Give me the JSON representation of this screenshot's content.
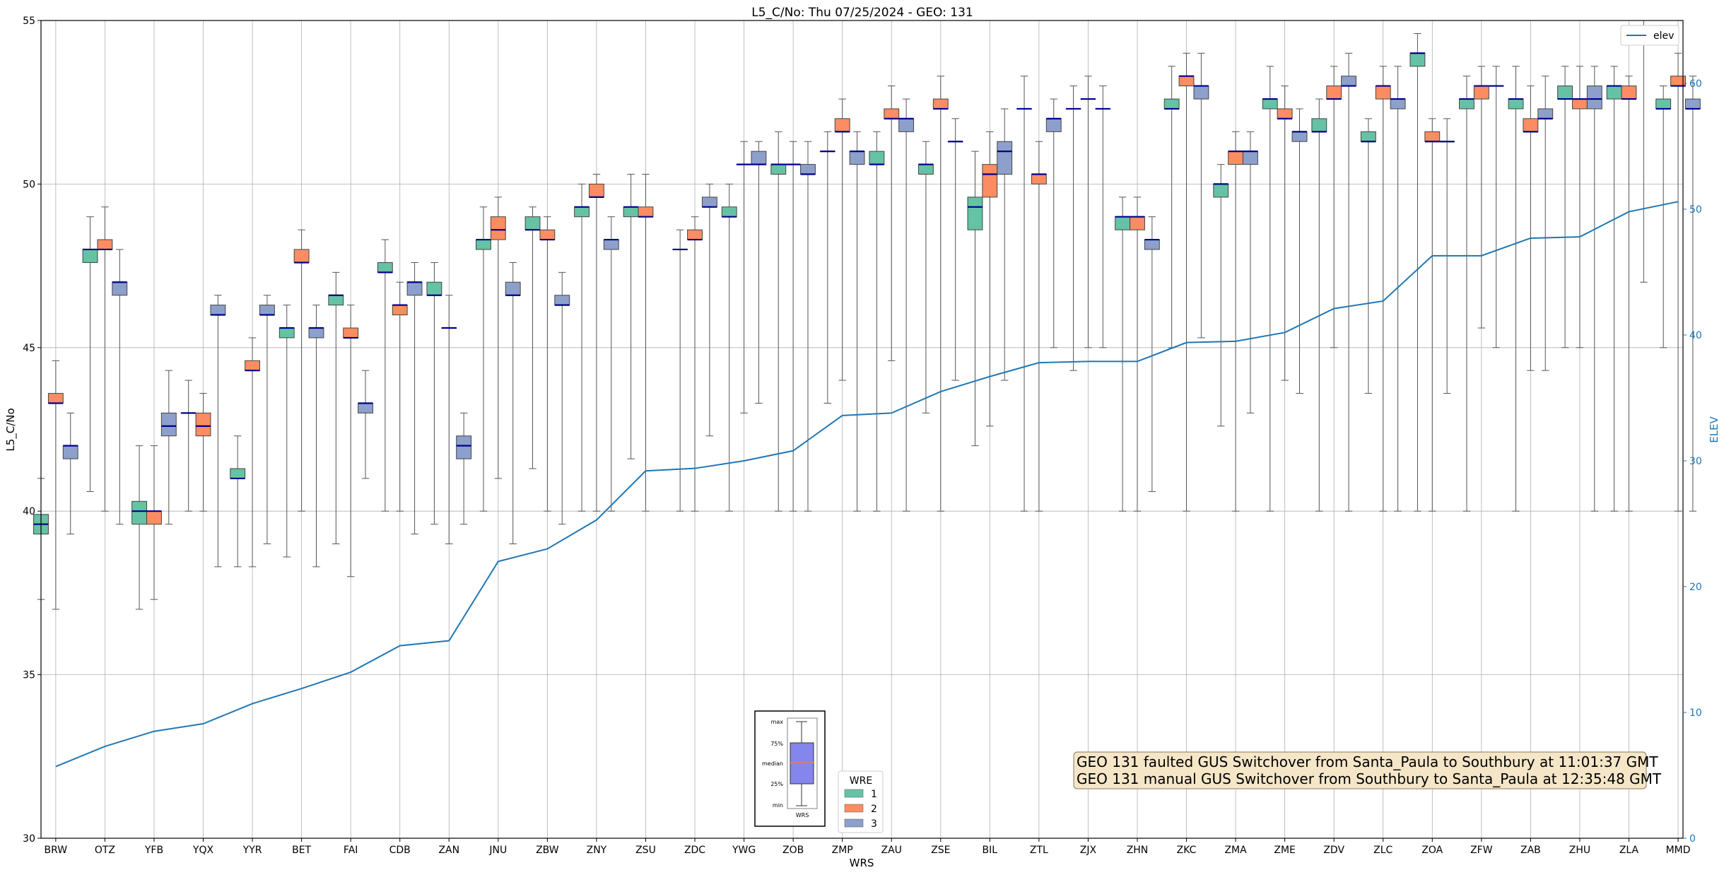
{
  "chart_data": {
    "type": "box",
    "title": "L5_C/No: Thu 07/25/2024 - GEO: 131",
    "xlabel": "WRS",
    "ylabel": "L5_C/No",
    "y2label": "ELEV",
    "ylim": [
      30,
      55
    ],
    "y2lim": [
      0,
      65
    ],
    "yticks": [
      "30",
      "35",
      "40",
      "45",
      "50",
      "55"
    ],
    "y2ticks": [
      "0",
      "10",
      "20",
      "30",
      "40",
      "50",
      "60"
    ],
    "grid": true,
    "categories": [
      "BRW",
      "OTZ",
      "YFB",
      "YQX",
      "YYR",
      "BET",
      "FAI",
      "CDB",
      "ZAN",
      "JNU",
      "ZBW",
      "ZNY",
      "ZSU",
      "ZDC",
      "YWG",
      "ZOB",
      "ZMP",
      "ZAU",
      "ZSE",
      "BIL",
      "ZTL",
      "ZJX",
      "ZHN",
      "ZKC",
      "ZMA",
      "ZME",
      "ZDV",
      "ZLC",
      "ZOA",
      "ZFW",
      "ZAB",
      "ZHU",
      "ZLA",
      "MMD"
    ],
    "wre_colors": {
      "1": "#66c2a5",
      "2": "#fc8d62",
      "3": "#8da0cb"
    },
    "median_color": "#00008b",
    "boxes": [
      {
        "site": "BRW",
        "wre": "1",
        "min": 37.3,
        "q1": 39.3,
        "median": 39.6,
        "q3": 39.9,
        "max": 41.0
      },
      {
        "site": "BRW",
        "wre": "2",
        "min": 37.0,
        "q1": 43.3,
        "median": 43.3,
        "q3": 43.6,
        "max": 44.6
      },
      {
        "site": "BRW",
        "wre": "3",
        "min": 39.3,
        "q1": 41.6,
        "median": 42.0,
        "q3": 42.0,
        "max": 43.0
      },
      {
        "site": "OTZ",
        "wre": "1",
        "min": 40.6,
        "q1": 47.6,
        "median": 48.0,
        "q3": 48.0,
        "max": 49.0
      },
      {
        "site": "OTZ",
        "wre": "2",
        "min": 40.0,
        "q1": 48.0,
        "median": 48.0,
        "q3": 48.3,
        "max": 49.3
      },
      {
        "site": "OTZ",
        "wre": "3",
        "min": 39.6,
        "q1": 46.6,
        "median": 47.0,
        "q3": 47.0,
        "max": 48.0
      },
      {
        "site": "YFB",
        "wre": "1",
        "min": 37.0,
        "q1": 39.6,
        "median": 40.0,
        "q3": 40.3,
        "max": 42.0
      },
      {
        "site": "YFB",
        "wre": "2",
        "min": 37.3,
        "q1": 39.6,
        "median": 40.0,
        "q3": 40.0,
        "max": 42.0
      },
      {
        "site": "YFB",
        "wre": "3",
        "min": 39.6,
        "q1": 42.3,
        "median": 42.6,
        "q3": 43.0,
        "max": 44.3
      },
      {
        "site": "YQX",
        "wre": "1",
        "min": 40.0,
        "q1": 43.0,
        "median": 43.0,
        "q3": 43.0,
        "max": 44.0
      },
      {
        "site": "YQX",
        "wre": "2",
        "min": 40.0,
        "q1": 42.3,
        "median": 42.6,
        "q3": 43.0,
        "max": 43.6
      },
      {
        "site": "YQX",
        "wre": "3",
        "min": 38.3,
        "q1": 46.0,
        "median": 46.0,
        "q3": 46.3,
        "max": 46.6
      },
      {
        "site": "YYR",
        "wre": "1",
        "min": 38.3,
        "q1": 41.0,
        "median": 41.0,
        "q3": 41.3,
        "max": 42.3
      },
      {
        "site": "YYR",
        "wre": "2",
        "min": 38.3,
        "q1": 44.3,
        "median": 44.3,
        "q3": 44.6,
        "max": 45.3
      },
      {
        "site": "YYR",
        "wre": "3",
        "min": 39.0,
        "q1": 46.0,
        "median": 46.0,
        "q3": 46.3,
        "max": 46.6
      },
      {
        "site": "BET",
        "wre": "1",
        "min": 38.6,
        "q1": 45.3,
        "median": 45.6,
        "q3": 45.6,
        "max": 46.3
      },
      {
        "site": "BET",
        "wre": "2",
        "min": 40.0,
        "q1": 47.6,
        "median": 47.6,
        "q3": 48.0,
        "max": 48.6
      },
      {
        "site": "BET",
        "wre": "3",
        "min": 38.3,
        "q1": 45.3,
        "median": 45.6,
        "q3": 45.6,
        "max": 46.3
      },
      {
        "site": "FAI",
        "wre": "1",
        "min": 39.0,
        "q1": 46.3,
        "median": 46.6,
        "q3": 46.6,
        "max": 47.3
      },
      {
        "site": "FAI",
        "wre": "2",
        "min": 38.0,
        "q1": 45.3,
        "median": 45.3,
        "q3": 45.6,
        "max": 46.3
      },
      {
        "site": "FAI",
        "wre": "3",
        "min": 41.0,
        "q1": 43.0,
        "median": 43.3,
        "q3": 43.3,
        "max": 44.3
      },
      {
        "site": "CDB",
        "wre": "1",
        "min": 40.0,
        "q1": 47.3,
        "median": 47.3,
        "q3": 47.6,
        "max": 48.3
      },
      {
        "site": "CDB",
        "wre": "2",
        "min": 40.0,
        "q1": 46.0,
        "median": 46.3,
        "q3": 46.3,
        "max": 47.0
      },
      {
        "site": "CDB",
        "wre": "3",
        "min": 39.3,
        "q1": 46.6,
        "median": 47.0,
        "q3": 47.0,
        "max": 47.6
      },
      {
        "site": "ZAN",
        "wre": "1",
        "min": 39.6,
        "q1": 46.6,
        "median": 46.6,
        "q3": 47.0,
        "max": 47.6
      },
      {
        "site": "ZAN",
        "wre": "2",
        "min": 39.0,
        "q1": 45.6,
        "median": 45.6,
        "q3": 45.6,
        "max": 46.6
      },
      {
        "site": "ZAN",
        "wre": "3",
        "min": 39.6,
        "q1": 41.6,
        "median": 42.0,
        "q3": 42.3,
        "max": 43.0
      },
      {
        "site": "JNU",
        "wre": "1",
        "min": 40.0,
        "q1": 48.0,
        "median": 48.3,
        "q3": 48.3,
        "max": 49.3
      },
      {
        "site": "JNU",
        "wre": "2",
        "min": 41.0,
        "q1": 48.3,
        "median": 48.6,
        "q3": 49.0,
        "max": 49.6
      },
      {
        "site": "JNU",
        "wre": "3",
        "min": 39.0,
        "q1": 46.6,
        "median": 46.6,
        "q3": 47.0,
        "max": 47.6
      },
      {
        "site": "ZBW",
        "wre": "1",
        "min": 41.3,
        "q1": 48.6,
        "median": 48.6,
        "q3": 49.0,
        "max": 49.3
      },
      {
        "site": "ZBW",
        "wre": "2",
        "min": 40.0,
        "q1": 48.3,
        "median": 48.3,
        "q3": 48.6,
        "max": 49.0
      },
      {
        "site": "ZBW",
        "wre": "3",
        "min": 39.6,
        "q1": 46.3,
        "median": 46.3,
        "q3": 46.6,
        "max": 47.3
      },
      {
        "site": "ZNY",
        "wre": "1",
        "min": 40.0,
        "q1": 49.0,
        "median": 49.3,
        "q3": 49.3,
        "max": 50.0
      },
      {
        "site": "ZNY",
        "wre": "2",
        "min": 40.0,
        "q1": 49.6,
        "median": 49.6,
        "q3": 50.0,
        "max": 50.3
      },
      {
        "site": "ZNY",
        "wre": "3",
        "min": 40.0,
        "q1": 48.0,
        "median": 48.3,
        "q3": 48.3,
        "max": 49.0
      },
      {
        "site": "ZSU",
        "wre": "1",
        "min": 41.6,
        "q1": 49.0,
        "median": 49.3,
        "q3": 49.3,
        "max": 50.3
      },
      {
        "site": "ZSU",
        "wre": "2",
        "min": 40.0,
        "q1": 49.0,
        "median": 49.0,
        "q3": 49.3,
        "max": 50.3
      },
      {
        "site": "ZDC",
        "wre": "1",
        "min": 40.0,
        "q1": 48.0,
        "median": 48.0,
        "q3": 48.0,
        "max": 48.6
      },
      {
        "site": "ZDC",
        "wre": "2",
        "min": 40.0,
        "q1": 48.3,
        "median": 48.3,
        "q3": 48.6,
        "max": 49.0
      },
      {
        "site": "ZDC",
        "wre": "3",
        "min": 42.3,
        "q1": 49.3,
        "median": 49.3,
        "q3": 49.6,
        "max": 50.0
      },
      {
        "site": "YWG",
        "wre": "1",
        "min": 40.0,
        "q1": 49.0,
        "median": 49.0,
        "q3": 49.3,
        "max": 50.0
      },
      {
        "site": "YWG",
        "wre": "2",
        "min": 43.0,
        "q1": 50.6,
        "median": 50.6,
        "q3": 50.6,
        "max": 51.3
      },
      {
        "site": "YWG",
        "wre": "3",
        "min": 43.3,
        "q1": 50.6,
        "median": 50.6,
        "q3": 51.0,
        "max": 51.3
      },
      {
        "site": "ZOB",
        "wre": "1",
        "min": 40.0,
        "q1": 50.3,
        "median": 50.6,
        "q3": 50.6,
        "max": 51.6
      },
      {
        "site": "ZOB",
        "wre": "2",
        "min": 40.0,
        "q1": 50.6,
        "median": 50.6,
        "q3": 50.6,
        "max": 51.3
      },
      {
        "site": "ZOB",
        "wre": "3",
        "min": 40.0,
        "q1": 50.3,
        "median": 50.3,
        "q3": 50.6,
        "max": 51.3
      },
      {
        "site": "ZMP",
        "wre": "1",
        "min": 43.3,
        "q1": 51.0,
        "median": 51.0,
        "q3": 51.0,
        "max": 51.6
      },
      {
        "site": "ZMP",
        "wre": "2",
        "min": 44.0,
        "q1": 51.6,
        "median": 51.6,
        "q3": 52.0,
        "max": 52.6
      },
      {
        "site": "ZMP",
        "wre": "3",
        "min": 40.0,
        "q1": 50.6,
        "median": 51.0,
        "q3": 51.0,
        "max": 51.6
      },
      {
        "site": "ZAU",
        "wre": "1",
        "min": 40.0,
        "q1": 50.6,
        "median": 50.6,
        "q3": 51.0,
        "max": 51.6
      },
      {
        "site": "ZAU",
        "wre": "2",
        "min": 44.6,
        "q1": 52.0,
        "median": 52.0,
        "q3": 52.3,
        "max": 53.0
      },
      {
        "site": "ZAU",
        "wre": "3",
        "min": 40.0,
        "q1": 51.6,
        "median": 52.0,
        "q3": 52.0,
        "max": 52.6
      },
      {
        "site": "ZSE",
        "wre": "1",
        "min": 43.0,
        "q1": 50.3,
        "median": 50.6,
        "q3": 50.6,
        "max": 51.3
      },
      {
        "site": "ZSE",
        "wre": "2",
        "min": 40.0,
        "q1": 52.3,
        "median": 52.3,
        "q3": 52.6,
        "max": 53.3
      },
      {
        "site": "ZSE",
        "wre": "3",
        "min": 44.0,
        "q1": 51.3,
        "median": 51.3,
        "q3": 51.3,
        "max": 52.0
      },
      {
        "site": "BIL",
        "wre": "1",
        "min": 42.0,
        "q1": 48.6,
        "median": 49.3,
        "q3": 49.6,
        "max": 51.0
      },
      {
        "site": "BIL",
        "wre": "2",
        "min": 42.6,
        "q1": 49.6,
        "median": 50.3,
        "q3": 50.6,
        "max": 51.6
      },
      {
        "site": "BIL",
        "wre": "3",
        "min": 44.0,
        "q1": 50.3,
        "median": 51.0,
        "q3": 51.3,
        "max": 52.3
      },
      {
        "site": "ZTL",
        "wre": "1",
        "min": 40.0,
        "q1": 52.3,
        "median": 52.3,
        "q3": 52.3,
        "max": 53.3
      },
      {
        "site": "ZTL",
        "wre": "2",
        "min": 40.0,
        "q1": 50.0,
        "median": 50.3,
        "q3": 50.3,
        "max": 51.3
      },
      {
        "site": "ZTL",
        "wre": "3",
        "min": 45.0,
        "q1": 51.6,
        "median": 52.0,
        "q3": 52.0,
        "max": 52.6
      },
      {
        "site": "ZJX",
        "wre": "1",
        "min": 44.3,
        "q1": 52.3,
        "median": 52.3,
        "q3": 52.3,
        "max": 53.0
      },
      {
        "site": "ZJX",
        "wre": "2",
        "min": 45.0,
        "q1": 52.6,
        "median": 52.6,
        "q3": 52.6,
        "max": 53.3
      },
      {
        "site": "ZJX",
        "wre": "3",
        "min": 45.0,
        "q1": 52.3,
        "median": 52.3,
        "q3": 52.3,
        "max": 53.0
      },
      {
        "site": "ZHN",
        "wre": "1",
        "min": 40.0,
        "q1": 48.6,
        "median": 49.0,
        "q3": 49.0,
        "max": 49.6
      },
      {
        "site": "ZHN",
        "wre": "2",
        "min": 40.0,
        "q1": 48.6,
        "median": 49.0,
        "q3": 49.0,
        "max": 49.6
      },
      {
        "site": "ZHN",
        "wre": "3",
        "min": 40.6,
        "q1": 48.0,
        "median": 48.3,
        "q3": 48.3,
        "max": 49.0
      },
      {
        "site": "ZKC",
        "wre": "1",
        "min": 45.0,
        "q1": 52.3,
        "median": 52.3,
        "q3": 52.6,
        "max": 53.6
      },
      {
        "site": "ZKC",
        "wre": "2",
        "min": 40.0,
        "q1": 53.0,
        "median": 53.3,
        "q3": 53.3,
        "max": 54.0
      },
      {
        "site": "ZKC",
        "wre": "3",
        "min": 45.3,
        "q1": 52.6,
        "median": 53.0,
        "q3": 53.0,
        "max": 54.0
      },
      {
        "site": "ZMA",
        "wre": "1",
        "min": 42.6,
        "q1": 49.6,
        "median": 50.0,
        "q3": 50.0,
        "max": 50.6
      },
      {
        "site": "ZMA",
        "wre": "2",
        "min": 40.0,
        "q1": 50.6,
        "median": 51.0,
        "q3": 51.0,
        "max": 51.6
      },
      {
        "site": "ZMA",
        "wre": "3",
        "min": 43.0,
        "q1": 50.6,
        "median": 51.0,
        "q3": 51.0,
        "max": 51.6
      },
      {
        "site": "ZME",
        "wre": "1",
        "min": 40.0,
        "q1": 52.3,
        "median": 52.6,
        "q3": 52.6,
        "max": 53.6
      },
      {
        "site": "ZME",
        "wre": "2",
        "min": 44.0,
        "q1": 52.0,
        "median": 52.0,
        "q3": 52.3,
        "max": 53.0
      },
      {
        "site": "ZME",
        "wre": "3",
        "min": 43.6,
        "q1": 51.3,
        "median": 51.6,
        "q3": 51.6,
        "max": 52.3
      },
      {
        "site": "ZDV",
        "wre": "1",
        "min": 40.0,
        "q1": 51.6,
        "median": 51.6,
        "q3": 52.0,
        "max": 52.6
      },
      {
        "site": "ZDV",
        "wre": "2",
        "min": 45.0,
        "q1": 52.6,
        "median": 52.6,
        "q3": 53.0,
        "max": 53.6
      },
      {
        "site": "ZDV",
        "wre": "3",
        "min": 40.0,
        "q1": 53.0,
        "median": 53.0,
        "q3": 53.3,
        "max": 54.0
      },
      {
        "site": "ZLC",
        "wre": "1",
        "min": 43.6,
        "q1": 51.3,
        "median": 51.3,
        "q3": 51.6,
        "max": 52.0
      },
      {
        "site": "ZLC",
        "wre": "2",
        "min": 40.0,
        "q1": 52.6,
        "median": 53.0,
        "q3": 53.0,
        "max": 53.6
      },
      {
        "site": "ZLC",
        "wre": "3",
        "min": 40.0,
        "q1": 52.3,
        "median": 52.6,
        "q3": 52.6,
        "max": 53.6
      },
      {
        "site": "ZOA",
        "wre": "1",
        "min": 40.0,
        "q1": 53.6,
        "median": 54.0,
        "q3": 54.0,
        "max": 54.6
      },
      {
        "site": "ZOA",
        "wre": "2",
        "min": 40.0,
        "q1": 51.3,
        "median": 51.3,
        "q3": 51.6,
        "max": 52.0
      },
      {
        "site": "ZOA",
        "wre": "3",
        "min": 43.6,
        "q1": 51.3,
        "median": 51.3,
        "q3": 51.3,
        "max": 52.0
      },
      {
        "site": "ZFW",
        "wre": "1",
        "min": 40.0,
        "q1": 52.3,
        "median": 52.6,
        "q3": 52.6,
        "max": 53.3
      },
      {
        "site": "ZFW",
        "wre": "2",
        "min": 45.6,
        "q1": 52.6,
        "median": 53.0,
        "q3": 53.0,
        "max": 53.6
      },
      {
        "site": "ZFW",
        "wre": "3",
        "min": 45.0,
        "q1": 53.0,
        "median": 53.0,
        "q3": 53.0,
        "max": 53.6
      },
      {
        "site": "ZAB",
        "wre": "1",
        "min": 40.0,
        "q1": 52.3,
        "median": 52.6,
        "q3": 52.6,
        "max": 53.6
      },
      {
        "site": "ZAB",
        "wre": "2",
        "min": 44.3,
        "q1": 51.6,
        "median": 51.6,
        "q3": 52.0,
        "max": 53.0
      },
      {
        "site": "ZAB",
        "wre": "3",
        "min": 44.3,
        "q1": 52.0,
        "median": 52.0,
        "q3": 52.3,
        "max": 53.3
      },
      {
        "site": "ZHU",
        "wre": "1",
        "min": 45.0,
        "q1": 52.6,
        "median": 52.6,
        "q3": 53.0,
        "max": 53.6
      },
      {
        "site": "ZHU",
        "wre": "2",
        "min": 45.0,
        "q1": 52.3,
        "median": 52.6,
        "q3": 52.6,
        "max": 53.6
      },
      {
        "site": "ZHU",
        "wre": "3",
        "min": 40.0,
        "q1": 52.3,
        "median": 52.6,
        "q3": 53.0,
        "max": 53.6
      },
      {
        "site": "ZLA",
        "wre": "1",
        "min": 40.0,
        "q1": 52.6,
        "median": 53.0,
        "q3": 53.0,
        "max": 53.6
      },
      {
        "site": "ZLA",
        "wre": "2",
        "min": 40.0,
        "q1": 52.6,
        "median": 52.6,
        "q3": 53.0,
        "max": 53.3
      },
      {
        "site": "ZLA",
        "wre": "3",
        "min": 47.0,
        "q1": 54.3,
        "median": 54.3,
        "q3": 54.6,
        "max": 55.0
      },
      {
        "site": "MMD",
        "wre": "1",
        "min": 45.0,
        "q1": 52.3,
        "median": 52.3,
        "q3": 52.6,
        "max": 53.0
      },
      {
        "site": "MMD",
        "wre": "2",
        "min": 40.0,
        "q1": 53.0,
        "median": 53.0,
        "q3": 53.3,
        "max": 54.0
      },
      {
        "site": "MMD",
        "wre": "3",
        "min": 40.0,
        "q1": 52.3,
        "median": 52.3,
        "q3": 52.6,
        "max": 53.3
      }
    ],
    "elev_series": {
      "name": "elev",
      "color": "#1f77b4",
      "values": [
        5.7,
        7.3,
        8.5,
        9.1,
        10.7,
        11.9,
        13.2,
        15.3,
        15.7,
        22.0,
        23.0,
        25.3,
        29.2,
        29.4,
        30.0,
        30.8,
        33.6,
        33.8,
        35.5,
        36.7,
        37.8,
        37.9,
        37.9,
        39.4,
        39.5,
        40.2,
        42.1,
        42.7,
        46.3,
        46.3,
        47.7,
        47.8,
        49.8,
        50.6
      ]
    },
    "legend": {
      "title": "WRE",
      "entries": [
        "1",
        "2",
        "3"
      ],
      "placement": "bottom-center"
    },
    "line_legend": {
      "entries": [
        "elev"
      ],
      "placement": "top-right"
    },
    "box_key": {
      "labels": [
        "max",
        "75%",
        "median",
        "25%",
        "min"
      ],
      "xlabel": "WRS",
      "placement": "bottom-center"
    },
    "annotation": {
      "lines": [
        "GEO 131 faulted GUS Switchover from Santa_Paula to Southbury at 11:01:37 GMT",
        "GEO 131 manual GUS Switchover from Southbury to Santa_Paula at 12:35:48 GMT"
      ],
      "placement": "bottom-right"
    }
  }
}
